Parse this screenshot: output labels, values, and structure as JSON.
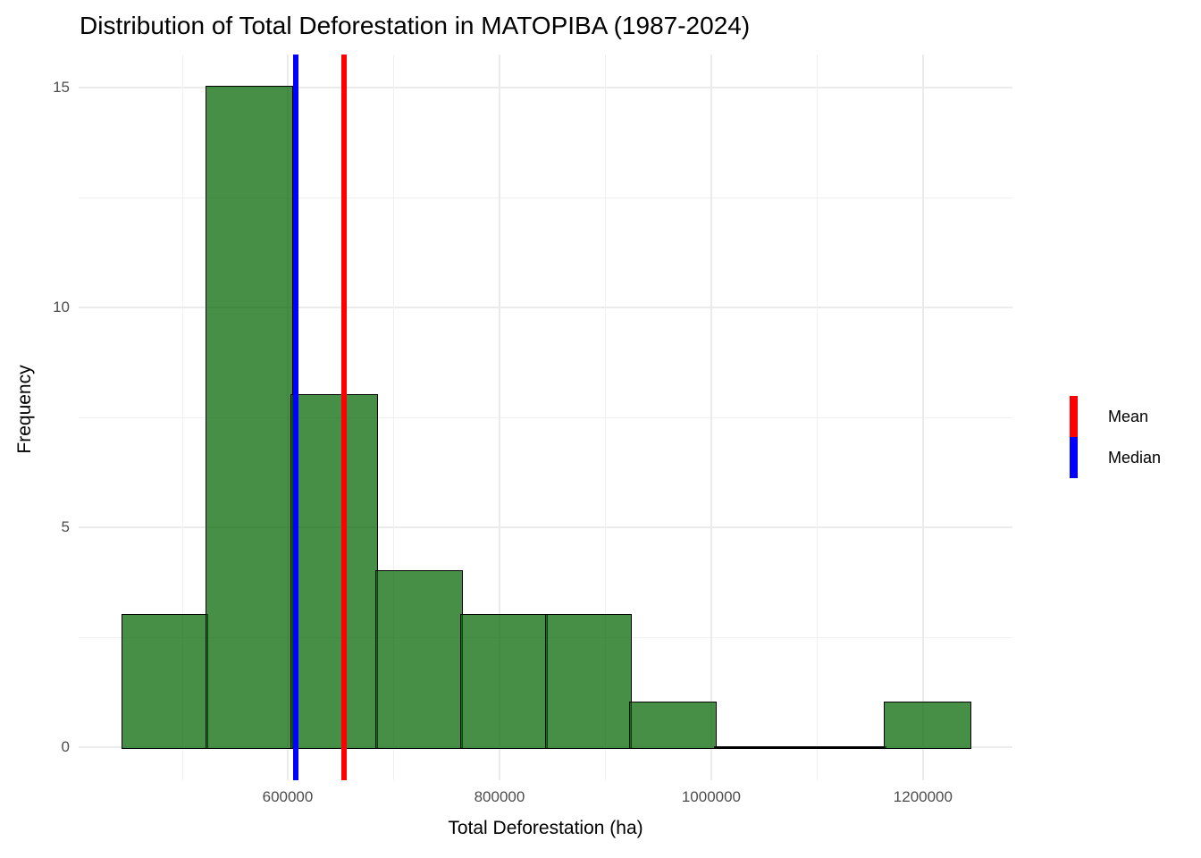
{
  "page": {
    "background": "#FFFFFF"
  },
  "chart_data": {
    "type": "bar",
    "subtype": "histogram",
    "title": "Distribution of Total Deforestation in MATOPIBA (1987-2024)",
    "xlabel": "Total Deforestation (ha)",
    "ylabel": "Frequency",
    "bin_edges": [
      444000,
      524000,
      604000,
      684000,
      764000,
      844000,
      924000,
      1004000,
      1084000,
      1164000,
      1244000
    ],
    "counts": [
      3,
      15,
      8,
      4,
      3,
      3,
      1,
      0,
      0,
      1
    ],
    "total_observations": 38,
    "mean_value": 653000,
    "median_value": 607500,
    "x_domain": [
      402500,
      1284500
    ],
    "y_domain": [
      -0.75,
      15.75
    ],
    "x_ticks": [
      600000,
      800000,
      1000000,
      1200000
    ],
    "x_tick_labels": [
      "600000",
      "800000",
      "1000000",
      "1200000"
    ],
    "x_minor_ticks": [
      500000,
      700000,
      900000,
      1100000
    ],
    "y_ticks": [
      0,
      5,
      10,
      15
    ],
    "y_tick_labels": [
      "0",
      "5",
      "10",
      "15"
    ],
    "y_minor_ticks": [
      2.5,
      7.5,
      12.5
    ],
    "ylim": [
      0,
      15
    ],
    "grid": true,
    "legend_position": "right",
    "legend": [
      {
        "label": "Mean",
        "color": "#FF0000"
      },
      {
        "label": "Median",
        "color": "#0000FF"
      }
    ],
    "colors": {
      "bar_fill": "rgba(0,100,0,0.72)",
      "bar_stroke": "#000000",
      "mean_line": "#FF0000",
      "median_line": "#0000FF",
      "grid_major": "#EBEBEB",
      "grid_minor": "#F0F0F0",
      "tick_text": "#4D4D4D",
      "title_text": "#000000"
    }
  }
}
